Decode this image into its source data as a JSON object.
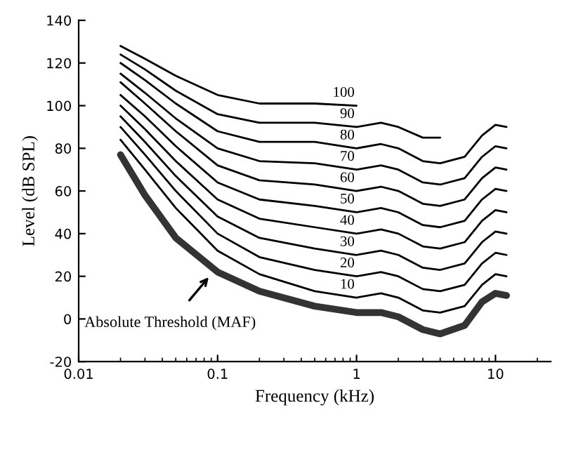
{
  "chart_data": {
    "type": "line",
    "xlabel": "Frequency (kHz)",
    "ylabel": "Level (dB SPL)",
    "log": "x",
    "xlim": [
      0.01,
      25
    ],
    "xticks": [
      0.01,
      0.1,
      1,
      10
    ],
    "ylim": [
      -20,
      140
    ],
    "yticks": [
      -20,
      0,
      20,
      40,
      60,
      80,
      100,
      120,
      140
    ],
    "grid": false,
    "legend": false,
    "marker": "none",
    "line_style": "solid",
    "x": [
      0.02,
      0.03,
      0.05,
      0.1,
      0.2,
      0.5,
      1,
      1.5,
      2,
      3,
      4,
      6,
      8,
      10,
      12
    ],
    "series": [
      {
        "color": "#333333",
        "values": [
          77,
          58,
          38,
          22,
          13,
          6,
          3,
          3,
          1,
          -5,
          -7,
          -3,
          8,
          12,
          11
        ]
      },
      {
        "name": "10",
        "color": "#000000",
        "values": [
          84,
          70,
          52,
          32,
          21,
          13,
          10,
          12,
          10,
          4,
          3,
          6,
          16,
          21,
          20
        ]
      },
      {
        "name": "20",
        "color": "#000000",
        "values": [
          90,
          77,
          60,
          40,
          29,
          23,
          20,
          22,
          20,
          14,
          13,
          16,
          26,
          31,
          30
        ]
      },
      {
        "name": "30",
        "color": "#000000",
        "values": [
          95,
          83,
          67,
          48,
          38,
          33,
          30,
          32,
          30,
          24,
          23,
          26,
          36,
          41,
          40
        ]
      },
      {
        "name": "40",
        "color": "#000000",
        "values": [
          100,
          89,
          74,
          56,
          47,
          43,
          40,
          42,
          40,
          34,
          33,
          36,
          46,
          51,
          50
        ]
      },
      {
        "name": "50",
        "color": "#000000",
        "values": [
          105,
          95,
          81,
          64,
          56,
          53,
          50,
          52,
          50,
          44,
          43,
          46,
          56,
          61,
          60
        ]
      },
      {
        "name": "60",
        "color": "#000000",
        "values": [
          111,
          101,
          88,
          72,
          65,
          63,
          60,
          62,
          60,
          54,
          53,
          56,
          66,
          71,
          70
        ]
      },
      {
        "name": "70",
        "color": "#000000",
        "values": [
          115,
          106,
          94,
          80,
          74,
          73,
          70,
          72,
          70,
          64,
          63,
          66,
          76,
          81,
          80
        ]
      },
      {
        "name": "80",
        "color": "#000000",
        "values": [
          120,
          112,
          101,
          88,
          83,
          83,
          80,
          82,
          80,
          74,
          73,
          76,
          86,
          91,
          90
        ]
      },
      {
        "name": "90",
        "color": "#000000",
        "values": [
          124,
          117,
          107,
          96,
          92,
          92,
          90,
          92,
          90,
          85,
          85,
          null,
          null,
          null,
          null
        ]
      },
      {
        "name": "100",
        "color": "#000000",
        "values": [
          128,
          122,
          114,
          105,
          101,
          101,
          100,
          null,
          null,
          null,
          null,
          null,
          null,
          null,
          null
        ]
      }
    ],
    "annotations": [
      {
        "text": "Absolute Threshold (MAF)",
        "x": 0.09,
        "y": 21
      }
    ]
  }
}
